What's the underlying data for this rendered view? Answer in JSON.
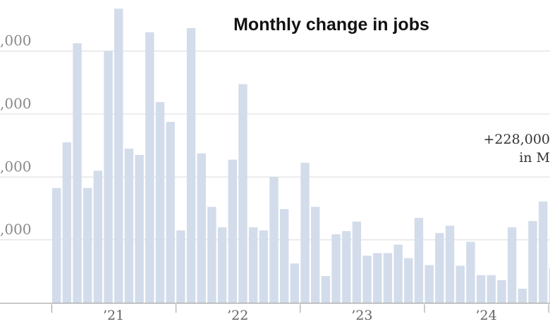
{
  "chart_data": {
    "type": "bar",
    "title": "Monthly change in jobs",
    "ytick_labels": [
      ",000",
      ",000",
      ",000",
      ",000"
    ],
    "ytick_values": [
      800000,
      600000,
      400000,
      200000
    ],
    "ylim": [
      0,
      940000
    ],
    "grid": true,
    "xtick_labels": [
      "’21",
      "’22",
      "’23",
      "’24"
    ],
    "annotation": {
      "line1": "+228,000",
      "line2": "in M"
    },
    "colors": {
      "bar": "#d3dcea",
      "grid": "#dcdcdc",
      "axis": "#999999"
    },
    "values": [
      365000,
      510000,
      825000,
      365000,
      420000,
      800000,
      935000,
      490000,
      470000,
      860000,
      638000,
      575000,
      230000,
      873000,
      475000,
      305000,
      240000,
      455000,
      695000,
      240000,
      230000,
      400000,
      298000,
      125000,
      445000,
      305000,
      85000,
      218000,
      228000,
      258000,
      150000,
      158000,
      158000,
      185000,
      142000,
      270000,
      120000,
      222000,
      245000,
      118000,
      194000,
      88000,
      88000,
      72000,
      240000,
      45000,
      260000,
      322000,
      110000
    ]
  }
}
